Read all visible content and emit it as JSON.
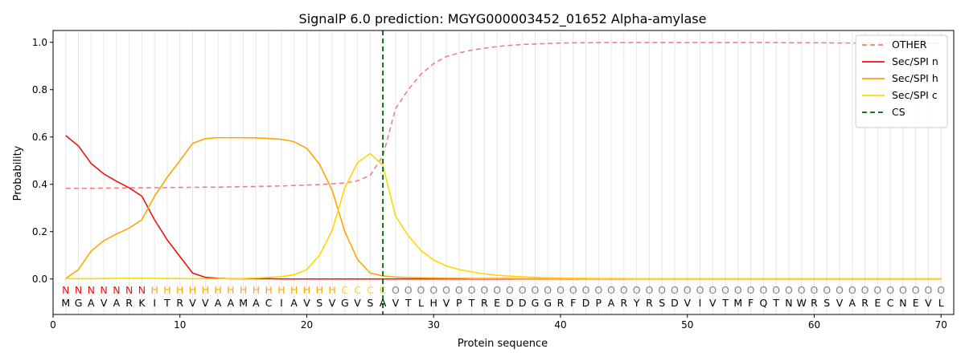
{
  "chart_data": {
    "type": "line",
    "title": "SignalP 6.0 prediction: MGYG000003452_01652 Alpha-amylase",
    "xlabel": "Protein sequence",
    "ylabel": "Probability",
    "xlim": [
      0,
      71
    ],
    "ylim": [
      -0.15,
      1.05
    ],
    "xticks": [
      0,
      10,
      20,
      30,
      40,
      50,
      60,
      70
    ],
    "yticks": [
      0.0,
      0.2,
      0.4,
      0.6,
      0.8,
      1.0
    ],
    "ytick_labels": [
      "0.0",
      "0.2",
      "0.4",
      "0.6",
      "0.8",
      "1.0"
    ],
    "grid": "vertical lines at each residue",
    "legend_position": "top-right",
    "cleavage_site": 26,
    "x": [
      1,
      2,
      3,
      4,
      5,
      6,
      7,
      8,
      9,
      10,
      11,
      12,
      13,
      14,
      15,
      16,
      17,
      18,
      19,
      20,
      21,
      22,
      23,
      24,
      25,
      26,
      27,
      28,
      29,
      30,
      31,
      32,
      33,
      34,
      35,
      36,
      37,
      38,
      39,
      40,
      41,
      42,
      43,
      44,
      45,
      46,
      47,
      48,
      49,
      50,
      51,
      52,
      53,
      54,
      55,
      56,
      57,
      58,
      59,
      60,
      61,
      62,
      63,
      64,
      65,
      66,
      67,
      68,
      69,
      70
    ],
    "series": [
      {
        "name": "OTHER",
        "color": "#f08080",
        "dash": "dashed",
        "values": [
          0.383,
          0.383,
          0.383,
          0.384,
          0.384,
          0.385,
          0.385,
          0.386,
          0.386,
          0.387,
          0.387,
          0.388,
          0.388,
          0.389,
          0.39,
          0.391,
          0.392,
          0.393,
          0.395,
          0.397,
          0.399,
          0.402,
          0.406,
          0.415,
          0.438,
          0.52,
          0.72,
          0.8,
          0.865,
          0.91,
          0.94,
          0.955,
          0.967,
          0.975,
          0.982,
          0.987,
          0.991,
          0.993,
          0.995,
          0.997,
          0.998,
          0.998,
          0.999,
          0.999,
          0.999,
          0.999,
          0.999,
          0.999,
          0.999,
          0.999,
          0.999,
          0.999,
          0.999,
          0.999,
          0.999,
          0.999,
          0.999,
          0.998,
          0.998,
          0.998,
          0.998,
          0.997,
          0.997,
          0.997,
          0.996,
          0.996,
          0.996,
          0.996,
          0.996,
          0.995
        ]
      },
      {
        "name": "Sec/SPI n",
        "color": "#ee1111",
        "dash": "solid",
        "values": [
          0.606,
          0.562,
          0.488,
          0.444,
          0.413,
          0.385,
          0.35,
          0.25,
          0.165,
          0.095,
          0.025,
          0.007,
          0.003,
          0.001,
          0.001,
          0.001,
          0.001,
          0.0,
          0.0,
          0.0,
          0.0,
          0.0,
          0.0,
          0.0,
          0.0,
          0.0,
          0.0,
          0.0,
          0.0,
          0.0,
          0.0,
          0.0,
          0.0,
          0.0,
          0.0,
          0.0,
          0.0,
          0.0,
          0.0,
          0.0,
          0.0,
          0.0,
          0.0,
          0.0,
          0.0,
          0.0,
          0.0,
          0.0,
          0.0,
          0.0,
          0.0,
          0.0,
          0.0,
          0.0,
          0.0,
          0.0,
          0.0,
          0.0,
          0.0,
          0.0,
          0.0,
          0.0,
          0.0,
          0.0,
          0.0,
          0.0,
          0.0,
          0.0,
          0.0,
          0.0
        ]
      },
      {
        "name": "Sec/SPI h",
        "color": "#ffa500",
        "dash": "solid",
        "values": [
          0.002,
          0.04,
          0.118,
          0.162,
          0.19,
          0.215,
          0.25,
          0.35,
          0.43,
          0.5,
          0.573,
          0.593,
          0.597,
          0.597,
          0.597,
          0.596,
          0.594,
          0.59,
          0.58,
          0.552,
          0.485,
          0.375,
          0.2,
          0.082,
          0.025,
          0.013,
          0.008,
          0.006,
          0.005,
          0.004,
          0.003,
          0.003,
          0.002,
          0.002,
          0.002,
          0.002,
          0.001,
          0.001,
          0.001,
          0.001,
          0.001,
          0.001,
          0.001,
          0.001,
          0.001,
          0.001,
          0.001,
          0.001,
          0.001,
          0.001,
          0.001,
          0.001,
          0.001,
          0.001,
          0.001,
          0.001,
          0.001,
          0.001,
          0.001,
          0.001,
          0.001,
          0.001,
          0.001,
          0.001,
          0.001,
          0.001,
          0.001,
          0.001,
          0.001,
          0.001
        ]
      },
      {
        "name": "Sec/SPI c",
        "color": "#ffd700",
        "dash": "solid",
        "values": [
          0.001,
          0.001,
          0.001,
          0.002,
          0.003,
          0.003,
          0.003,
          0.003,
          0.002,
          0.002,
          0.001,
          0.001,
          0.001,
          0.001,
          0.002,
          0.004,
          0.007,
          0.01,
          0.018,
          0.04,
          0.1,
          0.205,
          0.385,
          0.492,
          0.53,
          0.48,
          0.265,
          0.183,
          0.12,
          0.08,
          0.055,
          0.04,
          0.03,
          0.022,
          0.016,
          0.012,
          0.009,
          0.007,
          0.005,
          0.004,
          0.003,
          0.003,
          0.002,
          0.002,
          0.002,
          0.001,
          0.001,
          0.001,
          0.001,
          0.001,
          0.001,
          0.001,
          0.001,
          0.001,
          0.001,
          0.001,
          0.001,
          0.001,
          0.001,
          0.001,
          0.001,
          0.001,
          0.001,
          0.001,
          0.001,
          0.001,
          0.001,
          0.001,
          0.001,
          0.001
        ]
      },
      {
        "name": "CS",
        "color": "#006400",
        "dash": "dashed",
        "kind": "vline"
      }
    ],
    "sequence": [
      "M",
      "G",
      "A",
      "V",
      "A",
      "R",
      "K",
      "I",
      "T",
      "R",
      "V",
      "V",
      "A",
      "A",
      "M",
      "A",
      "C",
      "I",
      "A",
      "V",
      "S",
      "V",
      "G",
      "V",
      "S",
      "A",
      "V",
      "T",
      "L",
      "H",
      "V",
      "P",
      "T",
      "R",
      "E",
      "D",
      "D",
      "G",
      "G",
      "R",
      "F",
      "D",
      "P",
      "A",
      "R",
      "Y",
      "R",
      "S",
      "D",
      "V",
      "I",
      "V",
      "T",
      "M",
      "F",
      "Q",
      "T",
      "N",
      "W",
      "R",
      "S",
      "V",
      "A",
      "R",
      "E",
      "C",
      "N",
      "E",
      "V",
      "L"
    ],
    "region_labels": [
      "N",
      "N",
      "N",
      "N",
      "N",
      "N",
      "N",
      "H",
      "H",
      "H",
      "H",
      "H",
      "H",
      "H",
      "H",
      "H",
      "H",
      "H",
      "H",
      "H",
      "H",
      "H",
      "C",
      "C",
      "C",
      "C",
      "O",
      "O",
      "O",
      "O",
      "O",
      "O",
      "O",
      "O",
      "O",
      "O",
      "O",
      "O",
      "O",
      "O",
      "O",
      "O",
      "O",
      "O",
      "O",
      "O",
      "O",
      "O",
      "O",
      "O",
      "O",
      "O",
      "O",
      "O",
      "O",
      "O",
      "O",
      "O",
      "O",
      "O",
      "O",
      "O",
      "O",
      "O",
      "O",
      "O",
      "O",
      "O",
      "O",
      "O"
    ],
    "region_colors": {
      "N": "#ee1111",
      "H": "#ffa500",
      "C": "#ffd700",
      "O": "#808080"
    }
  }
}
